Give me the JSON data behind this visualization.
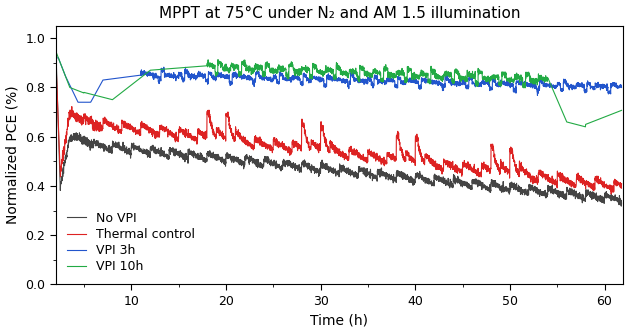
{
  "title": "MPPT at 75°C under N₂ and AM 1.5 illumination",
  "xlabel": "Time (h)",
  "ylabel": "Normalized PCE (%)",
  "xlim": [
    2,
    62
  ],
  "ylim": [
    0.0,
    1.05
  ],
  "yticks": [
    0.0,
    0.2,
    0.4,
    0.6,
    0.8,
    1.0
  ],
  "xticks": [
    10,
    20,
    30,
    40,
    50,
    60
  ],
  "legend_labels": [
    "No VPI",
    "Thermal control",
    "VPI 3h",
    "VPI 10h"
  ],
  "line_colors": [
    "#444444",
    "#dd2222",
    "#2255cc",
    "#22aa44"
  ],
  "background_color": "#ffffff",
  "title_fontsize": 11,
  "axis_fontsize": 10,
  "legend_fontsize": 9
}
